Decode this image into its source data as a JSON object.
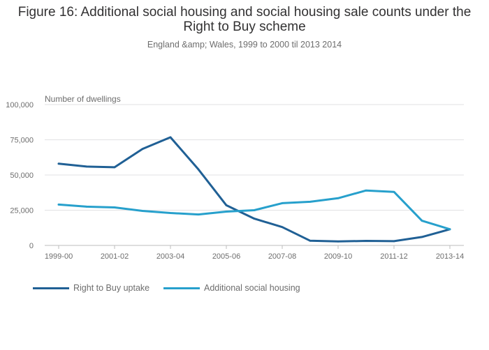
{
  "title": "Figure 16: Additional social housing and social housing sale counts under the Right to Buy scheme",
  "subtitle": "England &amp; Wales, 1999 to 2000 til 2013 2014",
  "chart_data": {
    "type": "line",
    "ylabel": "Number of dwellings",
    "xlabel": "",
    "x": [
      "1999-00",
      "2000-01",
      "2001-02",
      "2002-03",
      "2003-04",
      "2004-05",
      "2005-06",
      "2006-07",
      "2007-08",
      "2008-09",
      "2009-10",
      "2010-11",
      "2011-12",
      "2012-13",
      "2013-14"
    ],
    "x_tick_labels": [
      "1999-00",
      "2001-02",
      "2003-04",
      "2005-06",
      "2007-08",
      "2009-10",
      "2011-12",
      "2013-14"
    ],
    "y_ticks": [
      0,
      25000,
      50000,
      75000,
      100000
    ],
    "y_tick_labels": [
      "0",
      "25,000",
      "50,000",
      "75,000",
      "100,000"
    ],
    "ylim": [
      0,
      100000
    ],
    "grid": true,
    "legend_position": "bottom",
    "series": [
      {
        "name": "Right to Buy uptake",
        "color": "#206095",
        "values": [
          58000,
          56000,
          55500,
          68500,
          76800,
          54000,
          28500,
          19000,
          13000,
          3300,
          2800,
          3200,
          3000,
          6000,
          11500
        ]
      },
      {
        "name": "Additional social housing",
        "color": "#27a0cc",
        "values": [
          29000,
          27500,
          27000,
          24500,
          23000,
          22000,
          24000,
          25000,
          30000,
          31000,
          33500,
          39000,
          38000,
          17500,
          11500
        ]
      }
    ]
  }
}
